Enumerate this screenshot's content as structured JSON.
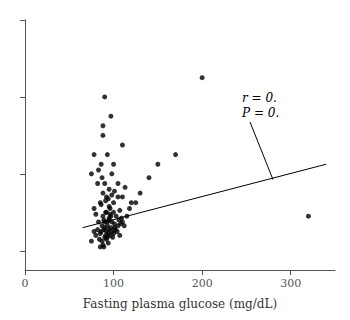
{
  "chart_data": {
    "type": "scatter",
    "xlabel": "Fasting plasma glucose (mg/dL)",
    "xlim": [
      0,
      350
    ],
    "ylim": [
      3,
      16
    ],
    "xticks": [
      0,
      100,
      200,
      300
    ],
    "yticks": [
      4,
      8,
      12,
      16
    ],
    "tick_labels": "x",
    "grid": false,
    "annotations": [
      {
        "text": "r = 0.\nP = 0.",
        "x": 280,
        "y": 7.7
      }
    ],
    "series": [
      {
        "type": "scatter",
        "color": "#000000",
        "x": [
          75,
          78,
          80,
          82,
          83,
          84,
          85,
          85,
          86,
          87,
          87,
          88,
          88,
          89,
          89,
          90,
          90,
          90,
          91,
          91,
          92,
          92,
          93,
          93,
          94,
          94,
          95,
          95,
          96,
          96,
          97,
          97,
          98,
          98,
          99,
          100,
          100,
          101,
          101,
          102,
          103,
          104,
          105,
          106,
          107,
          108,
          109,
          110,
          112,
          115,
          118,
          120,
          85,
          88,
          90,
          92,
          95,
          98,
          100,
          78,
          82,
          86,
          93,
          88,
          75,
          97,
          105,
          110,
          95,
          80,
          200,
          320,
          150,
          130,
          170,
          125,
          140,
          90,
          95,
          100,
          110,
          88,
          78,
          105,
          92,
          87,
          83,
          96,
          94,
          101,
          86,
          93,
          98,
          107,
          113,
          89,
          91
        ],
        "values": [
          4.5,
          5.0,
          4.8,
          5.1,
          5.5,
          4.6,
          4.2,
          4.9,
          5.0,
          5.3,
          4.5,
          4.3,
          5.8,
          5.1,
          4.2,
          4.7,
          5.5,
          5.2,
          4.8,
          6.0,
          4.6,
          5.0,
          4.7,
          5.3,
          4.9,
          4.4,
          5.1,
          5.6,
          4.8,
          6.2,
          5.2,
          5.8,
          5.0,
          5.5,
          4.7,
          4.9,
          6.0,
          5.2,
          5.4,
          5.1,
          5.8,
          5.0,
          5.3,
          5.6,
          4.8,
          5.4,
          5.7,
          5.5,
          5.3,
          5.8,
          6.2,
          6.5,
          6.5,
          7.0,
          7.5,
          6.8,
          7.2,
          8.0,
          6.5,
          6.2,
          7.5,
          8.5,
          9.0,
          10.0,
          8.0,
          11.0,
          7.5,
          6.8,
          6.3,
          5.9,
          13.0,
          5.8,
          8.5,
          7.0,
          9.0,
          6.5,
          7.8,
          12.0,
          5.7,
          8.5,
          9.5,
          10.5,
          9.0,
          6.8,
          6.0,
          7.8,
          8.2,
          5.9,
          6.7,
          7.1,
          6.4,
          5.5,
          6.9,
          6.1,
          7.3,
          5.6,
          6.6
        ]
      },
      {
        "type": "line",
        "color": "#000000",
        "x": [
          65,
          340
        ],
        "values": [
          5.2,
          8.5
        ]
      }
    ]
  }
}
